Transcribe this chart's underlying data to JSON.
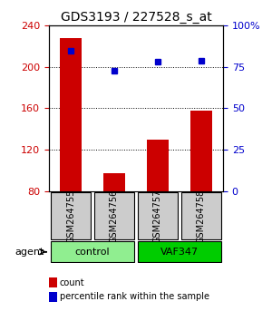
{
  "title": "GDS3193 / 227528_s_at",
  "samples": [
    "GSM264755",
    "GSM264756",
    "GSM264757",
    "GSM264758"
  ],
  "bar_values": [
    228,
    97,
    130,
    158
  ],
  "bar_color": "#cc0000",
  "dot_values": [
    85,
    73,
    78,
    79
  ],
  "dot_color": "#0000cc",
  "ylim_left": [
    80,
    240
  ],
  "ylim_right": [
    0,
    100
  ],
  "yticks_left": [
    80,
    120,
    160,
    200,
    240
  ],
  "yticks_right": [
    0,
    25,
    50,
    75,
    100
  ],
  "yticklabels_right": [
    "0",
    "25",
    "50",
    "75",
    "100%"
  ],
  "groups": [
    {
      "label": "control",
      "samples": [
        0,
        1
      ],
      "color": "#90ee90"
    },
    {
      "label": "VAF347",
      "samples": [
        2,
        3
      ],
      "color": "#00cc00"
    }
  ],
  "agent_label": "agent",
  "legend_count_label": "count",
  "legend_pct_label": "percentile rank within the sample",
  "bar_width": 0.5,
  "grid_color": "#000000",
  "sample_box_color": "#cccccc",
  "background_color": "#ffffff"
}
